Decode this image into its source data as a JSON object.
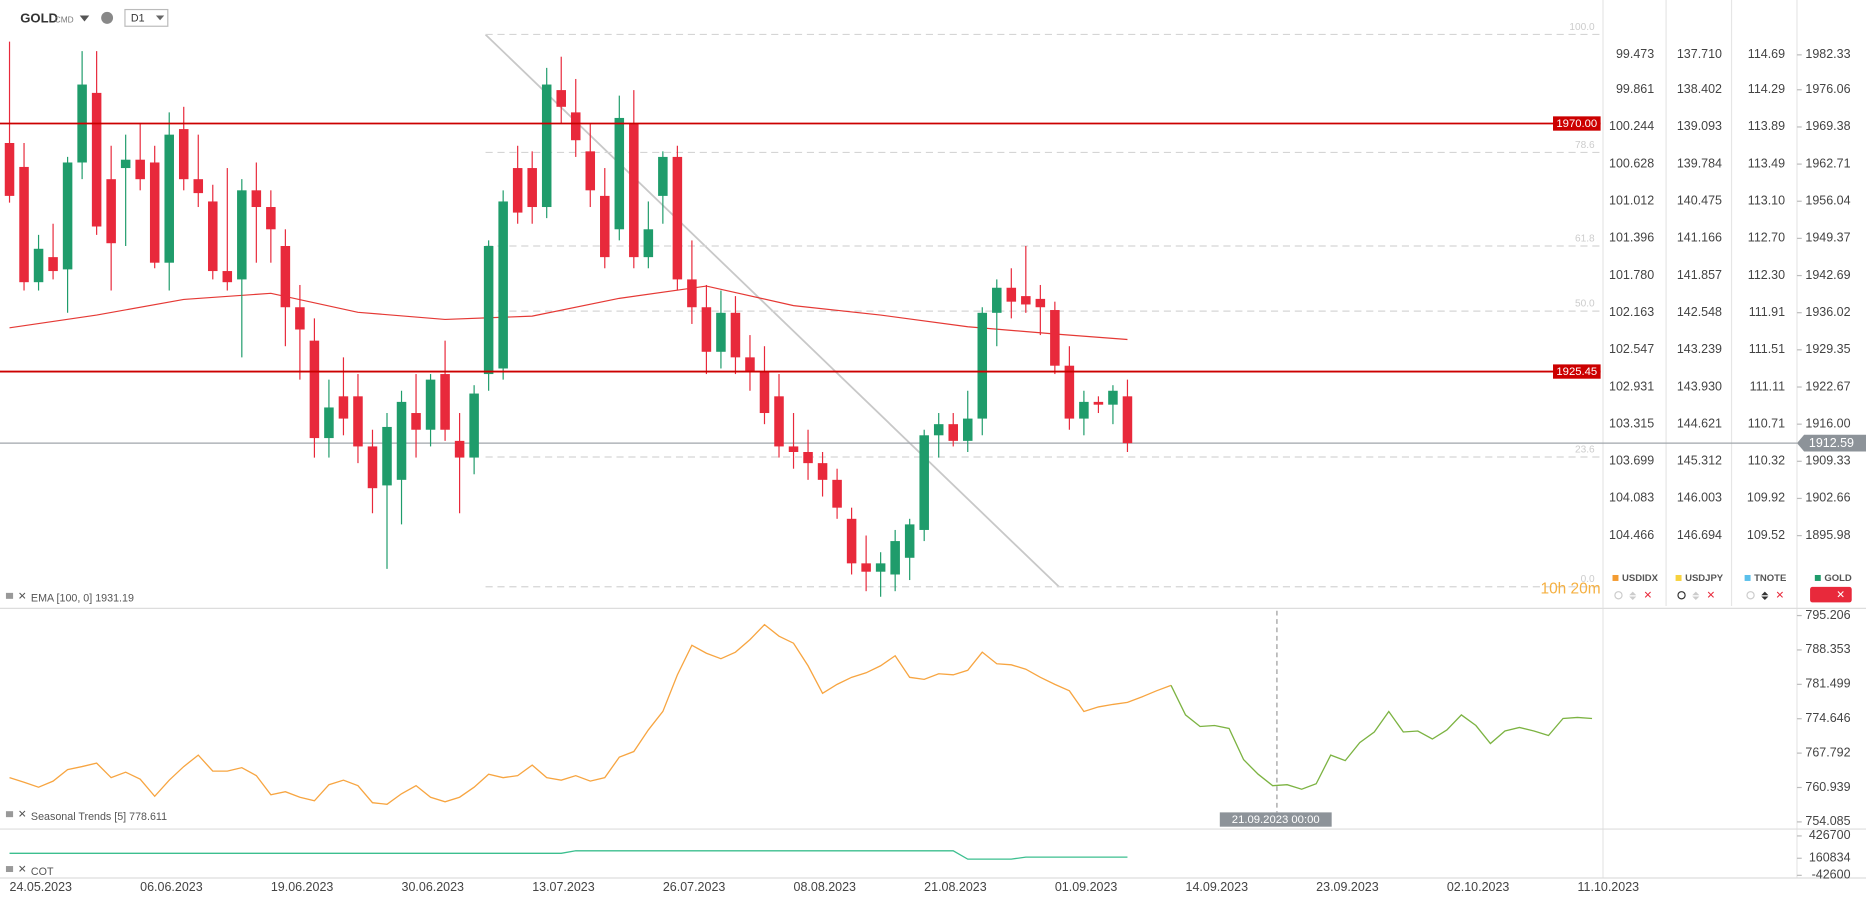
{
  "chart_data": [
    {
      "type": "candlestick",
      "title": "GOLD",
      "subtitle": "CMD",
      "timeframe": "D1",
      "up_color": "#1f9c6b",
      "down_color": "#e8293b",
      "open": [
        1966.5,
        1962.2,
        1941.5,
        1946.0,
        1943.8,
        1963.0,
        1975.5,
        1960.0,
        1962.0,
        1963.5,
        1963.0,
        1945.0,
        1969.0,
        1960.0,
        1956.0,
        1943.5,
        1942.0,
        1958.0,
        1955.0,
        1948.0,
        1937.0,
        1931.0,
        1913.5,
        1921.0,
        1921.0,
        1912.0,
        1905.0,
        1906.0,
        1918.0,
        1915.0,
        1925.0,
        1913.0,
        1910.0,
        1925.0,
        1926.0,
        1962.0,
        1962.0,
        1955.0,
        1976.0,
        1972.0,
        1965.0,
        1957.0,
        1951.0,
        1970.0,
        1946.0,
        1957.0,
        1964.0,
        1942.0,
        1937.0,
        1929.0,
        1936.0,
        1928.0,
        1925.5,
        1921.0,
        1912.0,
        1911.0,
        1909.0,
        1906.0,
        1899.0,
        1891.0,
        1889.5,
        1889.0,
        1892.0,
        1897.0,
        1914.0,
        1916.0,
        1913.0,
        1917.0,
        1936.0,
        1940.5,
        1939.0,
        1938.5,
        1936.5,
        1926.5,
        1917.0,
        1920.0,
        1919.5,
        1921.0
      ],
      "high": [
        1984.7,
        1966.5,
        1950.0,
        1952.0,
        1964.0,
        1983.0,
        1983.0,
        1966.0,
        1968.0,
        1970.0,
        1966.0,
        1972.0,
        1973.0,
        1968.0,
        1959.0,
        1962.0,
        1960.0,
        1963.0,
        1958.0,
        1951.0,
        1941.0,
        1935.0,
        1924.0,
        1928.0,
        1925.0,
        1915.0,
        1918.0,
        1922.0,
        1925.0,
        1925.0,
        1931.0,
        1918.0,
        1923.0,
        1949.0,
        1958.0,
        1966.0,
        1965.0,
        1980.0,
        1982.0,
        1978.0,
        1970.0,
        1962.0,
        1975.0,
        1976.0,
        1956.0,
        1965.0,
        1966.0,
        1949.0,
        1941.0,
        1940.0,
        1939.0,
        1932.0,
        1930.0,
        1925.0,
        1918.0,
        1915.0,
        1911.0,
        1908.0,
        1901.0,
        1896.0,
        1893.0,
        1897.0,
        1899.0,
        1915.0,
        1918.0,
        1918.0,
        1922.0,
        1937.0,
        1942.0,
        1944.0,
        1948.0,
        1941.0,
        1938.0,
        1930.0,
        1922.0,
        1921.0,
        1923.0,
        1924.0
      ],
      "low": [
        1955.8,
        1940.0,
        1940.0,
        1942.0,
        1936.0,
        1960.0,
        1950.0,
        1940.0,
        1948.0,
        1958.0,
        1944.0,
        1940.0,
        1958.0,
        1955.0,
        1942.0,
        1940.0,
        1928.0,
        1945.0,
        1945.0,
        1930.0,
        1924.0,
        1910.0,
        1910.0,
        1914.0,
        1909.0,
        1900.0,
        1890.0,
        1898.0,
        1910.0,
        1912.0,
        1913.0,
        1900.0,
        1907.0,
        1922.0,
        1924.0,
        1952.0,
        1952.0,
        1953.0,
        1970.0,
        1964.0,
        1955.0,
        1944.0,
        1949.0,
        1944.0,
        1944.0,
        1952.0,
        1940.0,
        1934.0,
        1925.0,
        1926.0,
        1925.0,
        1922.0,
        1916.0,
        1910.0,
        1908.0,
        1906.0,
        1903.0,
        1899.0,
        1889.0,
        1886.0,
        1885.0,
        1886.0,
        1888.0,
        1895.0,
        1910.0,
        1912.0,
        1911.0,
        1914.0,
        1930.0,
        1935.0,
        1936.0,
        1932.0,
        1925.0,
        1915.0,
        1914.0,
        1918.0,
        1916.0,
        1911.0
      ],
      "close": [
        1957.0,
        1941.5,
        1947.5,
        1943.5,
        1963.0,
        1977.0,
        1951.5,
        1948.5,
        1963.5,
        1960.0,
        1945.0,
        1968.0,
        1960.0,
        1957.5,
        1943.5,
        1941.5,
        1958.0,
        1955.0,
        1951.0,
        1937.0,
        1933.0,
        1913.5,
        1919.0,
        1917.0,
        1912.0,
        1904.5,
        1915.5,
        1920.0,
        1915.0,
        1924.0,
        1915.0,
        1910.0,
        1921.5,
        1948.0,
        1956.0,
        1954.0,
        1955.0,
        1977.0,
        1973.0,
        1967.0,
        1958.0,
        1946.0,
        1971.0,
        1946.0,
        1951.0,
        1964.0,
        1942.0,
        1937.0,
        1929.0,
        1936.0,
        1928.0,
        1925.5,
        1918.0,
        1912.0,
        1911.0,
        1909.0,
        1906.0,
        1901.0,
        1891.0,
        1889.5,
        1891.0,
        1895.0,
        1898.0,
        1914.0,
        1916.0,
        1913.0,
        1917.0,
        1936.0,
        1940.5,
        1938.0,
        1937.5,
        1937.0,
        1926.5,
        1917.0,
        1920.0,
        1919.5,
        1922.0,
        1912.59
      ],
      "ylim": [
        1883.34,
        1988.97
      ],
      "yticks": [
        1982.33,
        1976.06,
        1969.38,
        1962.71,
        1956.04,
        1949.37,
        1942.69,
        1936.02,
        1929.35,
        1922.67,
        {
          "value": 1916,
          "label": "1916.00"
        },
        1909.33,
        1902.66,
        1895.98
      ],
      "legend": [
        {
          "name": "USDIDX",
          "color": "#f39c32"
        },
        {
          "name": "USDJPY",
          "color": "#f7d23e"
        },
        {
          "name": "TNOTE",
          "color": "#5bc0eb"
        },
        {
          "name": "GOLD",
          "color": "#1f9c6b"
        }
      ],
      "axes_ticks": [
        [
          99.473,
          99.861,
          100.244,
          100.628,
          101.012,
          101.396,
          {
            "value": 101.78,
            "label": "101.780"
          },
          102.163,
          102.547,
          102.931,
          103.315,
          103.699,
          104.083,
          104.466
        ],
        [
          {
            "value": 137.71,
            "label": "137.710"
          },
          138.402,
          139.093,
          139.784,
          140.475,
          141.166,
          141.857,
          142.548,
          143.239,
          {
            "value": 143.93,
            "label": "143.930"
          },
          144.621,
          145.312,
          146.003,
          146.694
        ],
        [
          114.69,
          114.29,
          113.89,
          113.49,
          {
            "value": 113.1,
            "label": "113.10"
          },
          {
            "value": 112.7,
            "label": "112.70"
          },
          {
            "value": 112.3,
            "label": "112.30"
          },
          111.91,
          111.51,
          111.11,
          110.71,
          110.32,
          109.92,
          109.52
        ]
      ],
      "ema": {
        "label": "EMA [100, 0] 1931.19",
        "color": "#e53935",
        "x": [
          0,
          6,
          12,
          18,
          24,
          30,
          36,
          42,
          48,
          54,
          60,
          66,
          72,
          77
        ],
        "values": [
          1933.3,
          1935.6,
          1938.4,
          1939.5,
          1936.1,
          1934.8,
          1935.4,
          1938.6,
          1940.8,
          1937.3,
          1935.6,
          1933.5,
          1932.2,
          1931.2
        ]
      },
      "levels": [
        {
          "value": 1970,
          "label": "1970.00"
        },
        {
          "value": 1925.45,
          "label": "1925.45"
        }
      ],
      "level_color": "#cc0000",
      "fib": [
        {
          "label": "100.0",
          "price": 1986.0
        },
        {
          "label": "78.6",
          "price": 1964.8
        },
        {
          "label": "61.8",
          "price": 1948.0
        },
        {
          "label": "50.0",
          "price": 1936.3
        },
        {
          "label": "23.6",
          "price": 1910.1
        },
        {
          "label": "0.0",
          "price": 1886.8
        }
      ],
      "last": {
        "value": 1912.59,
        "label": "1912.59"
      },
      "timer": "10h 20m"
    },
    {
      "type": "line",
      "title": "Seasonal Trends [5] 778.611",
      "categories": [
        "24.05.2023",
        null,
        null,
        null,
        null,
        null,
        null,
        null,
        null,
        "06.06.2023",
        null,
        null,
        null,
        null,
        null,
        null,
        null,
        null,
        "19.06.2023",
        null,
        null,
        null,
        null,
        null,
        null,
        null,
        null,
        "30.06.2023",
        null,
        null,
        null,
        null,
        null,
        null,
        null,
        null,
        "13.07.2023",
        null,
        null,
        null,
        null,
        null,
        null,
        null,
        null,
        "26.07.2023",
        null,
        null,
        null,
        null,
        null,
        null,
        null,
        null,
        "08.08.2023",
        null,
        null,
        null,
        null,
        null,
        null,
        null,
        null,
        "21.08.2023",
        null,
        null,
        null,
        null,
        null,
        null,
        null,
        null,
        "01.09.2023",
        null,
        null,
        null,
        null,
        null,
        null,
        null,
        null,
        "14.09.2023",
        null,
        null,
        null,
        null,
        null,
        null,
        null,
        null,
        "23.09.2023",
        null,
        null,
        null,
        null,
        null,
        null,
        null,
        null,
        "02.10.2023",
        null,
        null,
        null,
        null,
        null,
        null,
        null,
        null,
        "11.10.2023",
        null
      ],
      "series": [
        {
          "color": "#f7a541",
          "values": [
            762.9,
            762.0,
            761.0,
            762.2,
            764.5,
            765.1,
            765.8,
            762.9,
            764.0,
            762.6,
            759.2,
            762.4,
            765.1,
            767.4,
            764.2,
            764.2,
            764.9,
            763.3,
            759.5,
            760.1,
            759.0,
            758.3,
            761.5,
            762.4,
            761.3,
            757.9,
            757.6,
            759.7,
            761.3,
            759.0,
            758.1,
            759.0,
            761.0,
            763.6,
            762.9,
            763.3,
            765.4,
            762.9,
            762.4,
            763.3,
            762.2,
            762.9,
            767.0,
            768.1,
            772.4,
            776.1,
            783.4,
            789.3,
            787.7,
            786.6,
            787.9,
            790.4,
            793.4,
            791.1,
            789.7,
            785.2,
            779.7,
            781.5,
            782.9,
            783.8,
            785.2,
            787.2,
            782.9,
            782.5,
            783.6,
            783.4,
            784.3,
            787.9,
            785.6,
            785.4,
            784.5,
            782.9,
            781.5,
            780.2,
            776.1,
            777.0,
            777.5,
            777.9,
            779.0,
            780.2,
            781.3,
            null,
            null,
            null,
            null,
            null,
            null,
            null,
            null,
            null,
            null,
            null,
            null,
            null,
            null,
            null,
            null,
            null,
            null,
            null,
            null,
            null,
            null,
            null,
            null,
            null,
            null,
            null,
            null,
            null
          ]
        },
        {
          "color": "#7cb342",
          "values": [
            null,
            null,
            null,
            null,
            null,
            null,
            null,
            null,
            null,
            null,
            null,
            null,
            null,
            null,
            null,
            null,
            null,
            null,
            null,
            null,
            null,
            null,
            null,
            null,
            null,
            null,
            null,
            null,
            null,
            null,
            null,
            null,
            null,
            null,
            null,
            null,
            null,
            null,
            null,
            null,
            null,
            null,
            null,
            null,
            null,
            null,
            null,
            null,
            null,
            null,
            null,
            null,
            null,
            null,
            null,
            null,
            null,
            null,
            null,
            null,
            null,
            null,
            null,
            null,
            null,
            null,
            null,
            null,
            null,
            null,
            null,
            null,
            null,
            null,
            null,
            null,
            null,
            null,
            null,
            null,
            781.3,
            775.4,
            773.1,
            773.3,
            772.7,
            766.5,
            763.6,
            761.3,
            761.5,
            760.6,
            761.7,
            767.4,
            766.3,
            769.9,
            772.0,
            776.1,
            772.0,
            772.2,
            770.6,
            772.4,
            775.4,
            773.3,
            769.7,
            772.2,
            772.9,
            772.2,
            771.3,
            774.7,
            774.9,
            774.7
          ]
        }
      ],
      "ylim": [
        753.13,
        796.16
      ],
      "yticks": [
        795.206,
        788.353,
        781.499,
        774.646,
        767.792,
        760.939,
        754.085
      ],
      "crosshair_label": "21.09.2023 00:00"
    },
    {
      "type": "line",
      "title": "COT",
      "color": "#3cbf8f",
      "values": [
        220000,
        220000,
        220000,
        220000,
        220000,
        220000,
        220000,
        220000,
        220000,
        220000,
        220000,
        220000,
        220000,
        220000,
        220000,
        220000,
        220000,
        220000,
        220000,
        220000,
        220000,
        220000,
        220000,
        220000,
        220000,
        220000,
        220000,
        220000,
        220000,
        220000,
        220000,
        220000,
        220000,
        220000,
        220000,
        220000,
        220000,
        220000,
        220000,
        250000,
        250000,
        250000,
        250000,
        250000,
        250000,
        250000,
        250000,
        250000,
        250000,
        250000,
        250000,
        250000,
        250000,
        250000,
        250000,
        250000,
        250000,
        250000,
        250000,
        250000,
        250000,
        250000,
        250000,
        250000,
        250000,
        250000,
        150000,
        150000,
        150000,
        150000,
        175000,
        175000,
        175000,
        175000,
        175000,
        175000,
        175000,
        175000
      ],
      "ylim": [
        -60000,
        480000
      ],
      "yticks": [
        426700,
        160834,
        -42600
      ]
    }
  ]
}
